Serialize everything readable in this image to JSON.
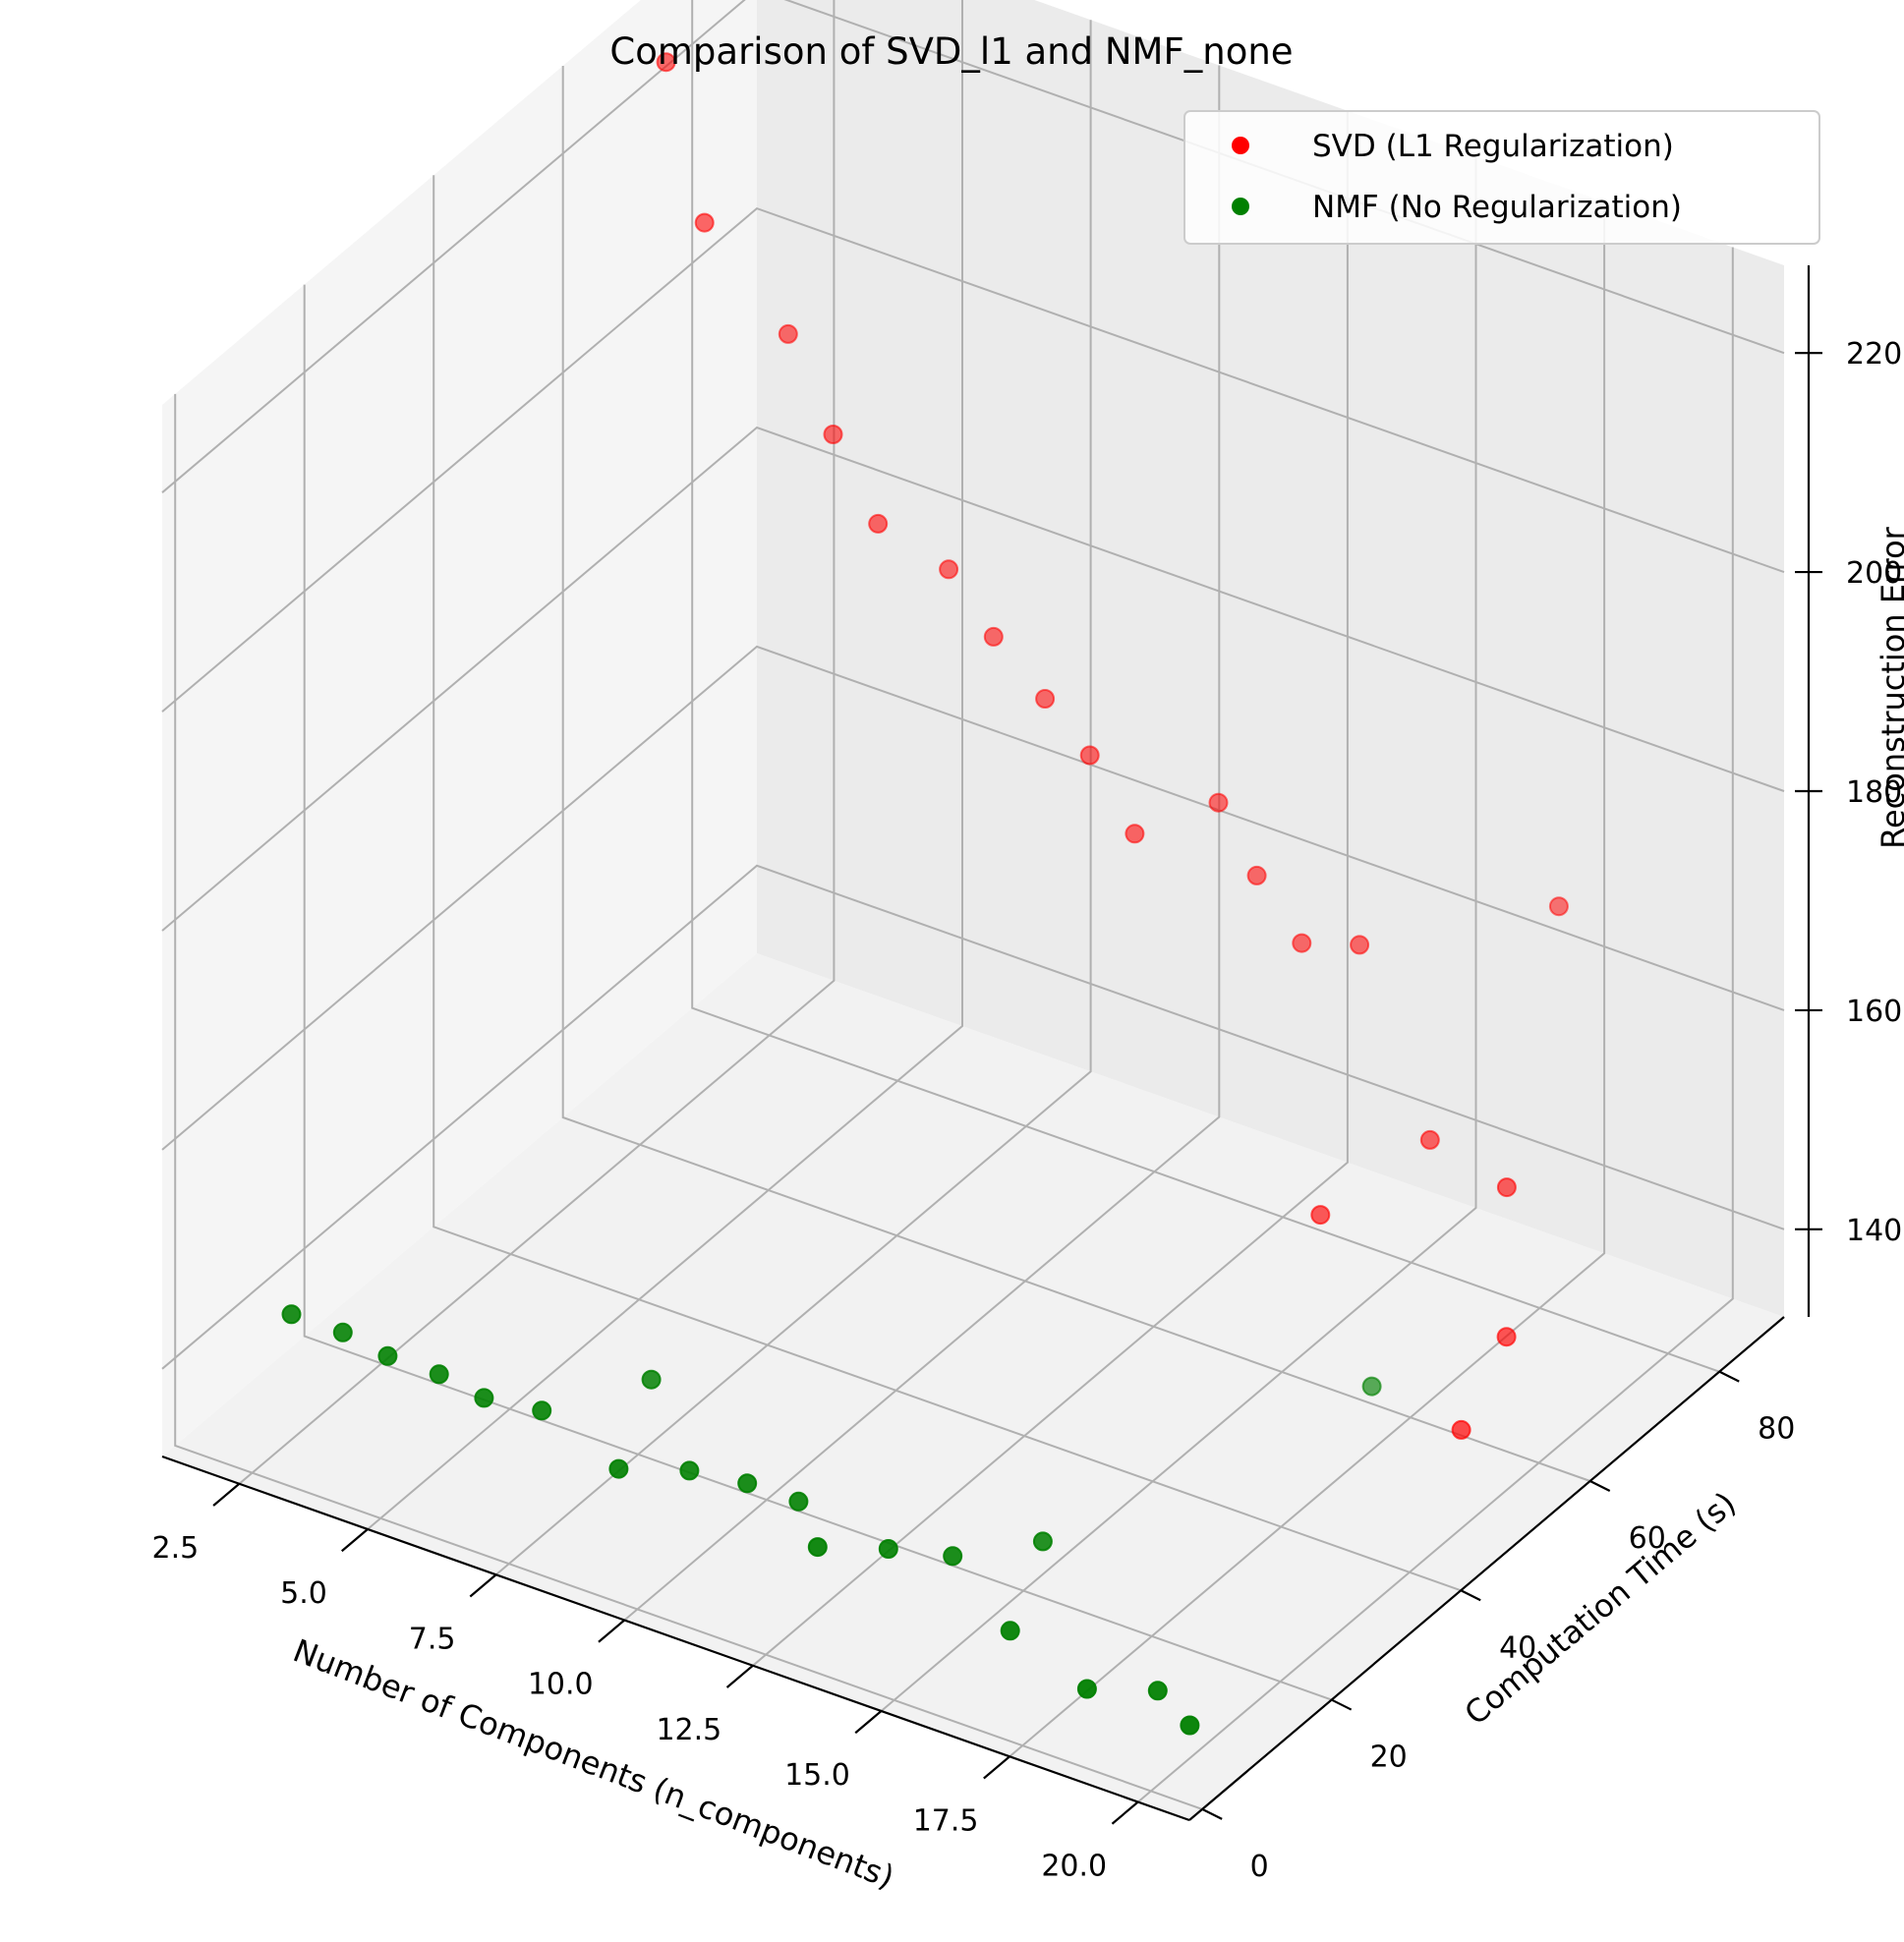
{
  "chart_data": {
    "type": "scatter",
    "title": "Comparison of SVD_l1 and NMF_none",
    "xlabel": "Number of Components (n_components)",
    "ylabel": "Computation Time (s)",
    "zlabel": "Reconstruction Error",
    "xlim": [
      1,
      21
    ],
    "ylim": [
      -2,
      90
    ],
    "zlim": [
      132,
      228
    ],
    "x_ticks": [
      2.5,
      5.0,
      7.5,
      10.0,
      12.5,
      15.0,
      17.5,
      20.0
    ],
    "x_tick_labels": [
      "2.5",
      "5.0",
      "7.5",
      "10.0",
      "12.5",
      "15.0",
      "17.5",
      "20.0"
    ],
    "y_ticks": [
      0,
      20,
      40,
      60,
      80
    ],
    "y_tick_labels": [
      "0",
      "20",
      "40",
      "60",
      "80"
    ],
    "z_ticks": [
      140,
      160,
      180,
      200,
      220
    ],
    "z_tick_labels": [
      "140",
      "160",
      "180",
      "200",
      "220"
    ],
    "grid": true,
    "legend_position": "top-right",
    "series": [
      {
        "name": "SVD (L1 Regularization)",
        "color": "#ff0000",
        "points": [
          {
            "x": 2,
            "y": 68,
            "z": 226
          },
          {
            "x": 3,
            "y": 66,
            "z": 214
          },
          {
            "x": 4,
            "y": 71,
            "z": 203
          },
          {
            "x": 5,
            "y": 70,
            "z": 196
          },
          {
            "x": 6,
            "y": 69,
            "z": 190
          },
          {
            "x": 7,
            "y": 72,
            "z": 186
          },
          {
            "x": 8,
            "y": 71,
            "z": 182
          },
          {
            "x": 9,
            "y": 71,
            "z": 178
          },
          {
            "x": 10,
            "y": 70,
            "z": 175
          },
          {
            "x": 11,
            "y": 69,
            "z": 170
          },
          {
            "x": 12,
            "y": 74,
            "z": 172
          },
          {
            "x": 13,
            "y": 72,
            "z": 168
          },
          {
            "x": 14,
            "y": 71,
            "z": 164
          },
          {
            "x": 15,
            "y": 72,
            "z": 165
          },
          {
            "x": 16,
            "y": 58,
            "z": 149
          },
          {
            "x": 17,
            "y": 67,
            "z": 153
          },
          {
            "x": 18,
            "y": 79,
            "z": 170
          },
          {
            "x": 19,
            "y": 63,
            "z": 154
          },
          {
            "x": 20,
            "y": 55,
            "z": 146
          },
          {
            "x": 20,
            "y": 48,
            "z": 141
          }
        ]
      },
      {
        "name": "NMF (No Regularization)",
        "color": "#008000",
        "points": [
          {
            "x": 1,
            "y": 18,
            "z": 135
          },
          {
            "x": 2,
            "y": 18,
            "z": 135
          },
          {
            "x": 3,
            "y": 17,
            "z": 135
          },
          {
            "x": 4,
            "y": 17,
            "z": 135
          },
          {
            "x": 5,
            "y": 16,
            "z": 135
          },
          {
            "x": 6,
            "y": 17,
            "z": 135
          },
          {
            "x": 7,
            "y": 26,
            "z": 135
          },
          {
            "x": 8,
            "y": 13,
            "z": 135
          },
          {
            "x": 9,
            "y": 16,
            "z": 135
          },
          {
            "x": 10,
            "y": 17,
            "z": 135
          },
          {
            "x": 11,
            "y": 17,
            "z": 135
          },
          {
            "x": 12,
            "y": 12,
            "z": 135
          },
          {
            "x": 13,
            "y": 15,
            "z": 135
          },
          {
            "x": 14,
            "y": 17,
            "z": 135
          },
          {
            "x": 15,
            "y": 23,
            "z": 135
          },
          {
            "x": 16,
            "y": 10,
            "z": 135
          },
          {
            "x": 17,
            "y": 58,
            "z": 135
          },
          {
            "x": 18,
            "y": 6,
            "z": 135
          },
          {
            "x": 19,
            "y": 9,
            "z": 135
          },
          {
            "x": 20,
            "y": 6,
            "z": 135
          }
        ]
      }
    ]
  }
}
